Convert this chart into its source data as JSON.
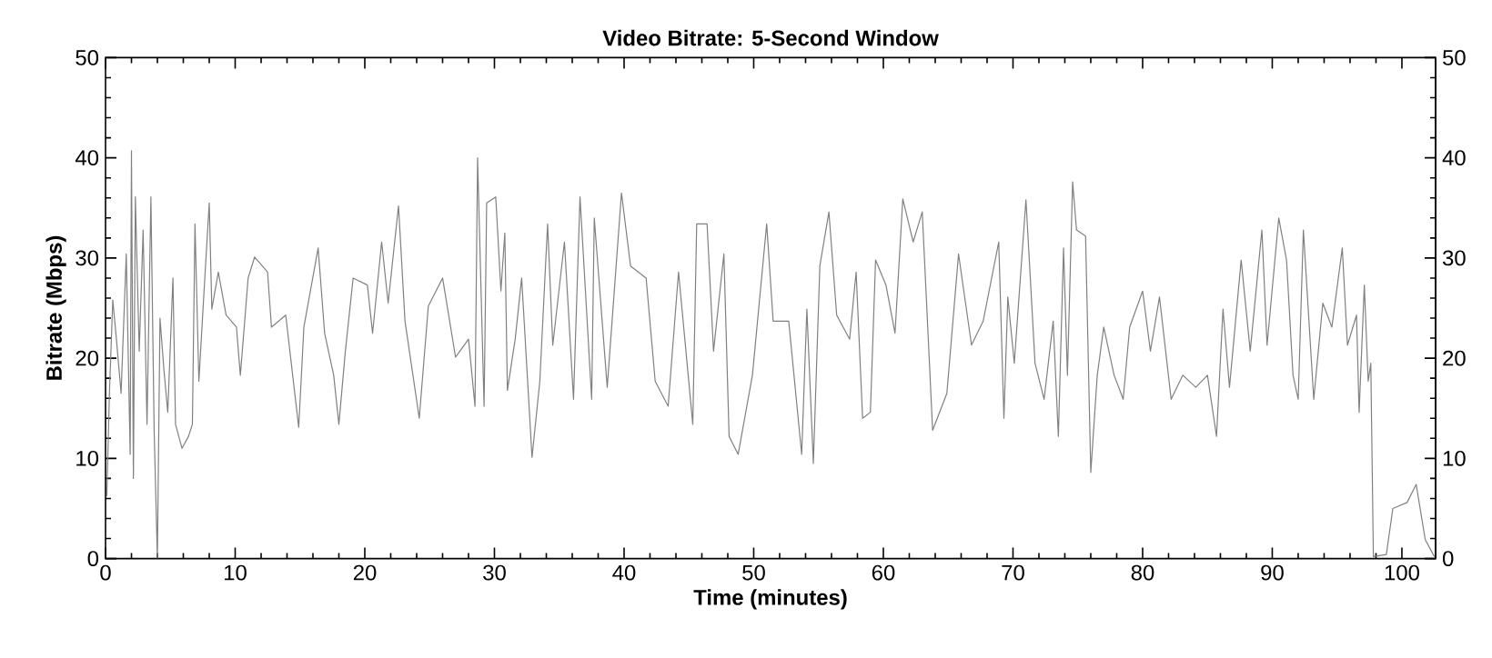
{
  "chart_data": {
    "type": "line",
    "title": "Video Bitrate: 5-Second Window",
    "xlabel": "Time (minutes)",
    "ylabel": "Bitrate (Mbps)",
    "xlim": [
      0,
      102.6
    ],
    "xticks": [
      0,
      10,
      20,
      30,
      40,
      50,
      60,
      70,
      80,
      90,
      100
    ],
    "ylim": [
      0,
      50
    ],
    "yticks": [
      0,
      10,
      20,
      30,
      40,
      50
    ],
    "y2lim": [
      0,
      50
    ],
    "y2ticks": [
      0,
      10,
      20,
      30,
      40,
      50
    ],
    "grid": false,
    "marker": "none",
    "line_style": "solid",
    "series": [
      {
        "color": "#808080",
        "x": [
          0.1,
          0.3,
          0.56,
          0.84,
          1.2,
          1.6,
          1.9,
          2.0,
          2.15,
          2.3,
          2.6,
          2.9,
          3.2,
          3.5,
          3.75,
          4.0,
          4.2,
          4.5,
          4.8,
          5.2,
          5.4,
          5.9,
          6.4,
          6.7,
          6.9,
          7.2,
          7.6,
          8.0,
          8.2,
          8.7,
          9.3,
          10.1,
          10.4,
          11,
          11.5,
          12.5,
          12.8,
          13.9,
          14.9,
          15.3,
          16.4,
          16.9,
          17.6,
          18,
          18.5,
          19.1,
          20.2,
          20.6,
          21.3,
          21.8,
          22.6,
          23.1,
          24.2,
          24.9,
          26,
          27,
          28,
          28.5,
          28.7,
          29.2,
          29.4,
          30.1,
          30.5,
          30.8,
          31,
          31.6,
          32.1,
          32.9,
          33.5,
          34.1,
          34.5,
          35.4,
          36.1,
          36.6,
          37.5,
          37.7,
          38.7,
          39.8,
          40.5,
          41.7,
          42.4,
          43.4,
          44.2,
          45.3,
          45.6,
          46.4,
          46.9,
          47.7,
          48.1,
          48.8,
          49.9,
          51,
          51.5,
          52.7,
          53.7,
          54.1,
          54.6,
          55.1,
          55.8,
          56.4,
          57.4,
          57.9,
          58.4,
          59,
          59.4,
          60.2,
          60.9,
          61.5,
          62.3,
          63,
          63.8,
          64.9,
          65.8,
          66.8,
          67.7,
          68.9,
          69.3,
          69.6,
          70.1,
          71,
          71.7,
          72.4,
          73.1,
          73.5,
          73.9,
          74.2,
          74.6,
          74.9,
          75.6,
          76,
          76.5,
          77,
          77.8,
          78.5,
          79,
          80,
          80.6,
          81.3,
          82.2,
          83.1,
          84.1,
          85,
          85.7,
          86.2,
          86.7,
          87.6,
          88.3,
          89.2,
          89.6,
          90.5,
          91.1,
          91.6,
          92,
          92.4,
          93.2,
          93.9,
          94.6,
          95.4,
          95.8,
          96.5,
          96.7,
          97.1,
          97.4,
          97.6,
          97.8,
          98.8,
          99.3,
          100.4,
          101.1,
          101.8,
          102.5
        ],
        "values": [
          6.2,
          16.5,
          25.8,
          21.9,
          16.5,
          30.4,
          10.4,
          40.7,
          8,
          36.1,
          20.7,
          32.8,
          13.4,
          36.1,
          12.8,
          0,
          24,
          18.9,
          14.6,
          28,
          13.4,
          11,
          12.2,
          13.4,
          33.4,
          17.7,
          26.7,
          35.5,
          24.9,
          28.6,
          24.3,
          23.1,
          18.3,
          28,
          30.1,
          28.6,
          23.1,
          24.3,
          13.1,
          23.1,
          31,
          22.5,
          18.3,
          13.4,
          20.7,
          28,
          27.3,
          22.5,
          31.6,
          25.5,
          35.2,
          23.7,
          14,
          25.2,
          28,
          20.1,
          21.9,
          15.2,
          40,
          15.2,
          35.5,
          36.1,
          26.7,
          32.5,
          16.8,
          21.9,
          28,
          10.1,
          17.7,
          33.4,
          21.3,
          31.6,
          15.9,
          36.1,
          15.9,
          34,
          17.1,
          36.5,
          29.2,
          28,
          17.7,
          15.2,
          28.6,
          13.4,
          33.4,
          33.4,
          20.7,
          30.4,
          12.2,
          10.4,
          18.3,
          33.4,
          23.7,
          23.7,
          10.4,
          24.9,
          9.5,
          29.2,
          34.6,
          24.3,
          21.9,
          28.6,
          14,
          14.6,
          29.8,
          27.3,
          22.5,
          35.9,
          31.6,
          34.6,
          12.8,
          16.5,
          30.4,
          21.3,
          23.7,
          31.6,
          14,
          26.1,
          19.5,
          35.8,
          19.5,
          15.9,
          23.7,
          12.2,
          31,
          18.3,
          37.6,
          32.8,
          32.2,
          8.6,
          18.3,
          23.1,
          18.3,
          15.9,
          23.1,
          26.7,
          20.7,
          26.1,
          15.9,
          18.3,
          17.1,
          18.3,
          12.2,
          24.9,
          17.1,
          29.8,
          20.7,
          32.8,
          21.3,
          34,
          29.8,
          18.3,
          15.9,
          32.8,
          15.9,
          25.5,
          23.1,
          31,
          21.3,
          24.3,
          14.6,
          27.3,
          17.7,
          19.5,
          0.2,
          0.4,
          5,
          5.6,
          7.4,
          1.9,
          0.2
        ]
      }
    ]
  }
}
